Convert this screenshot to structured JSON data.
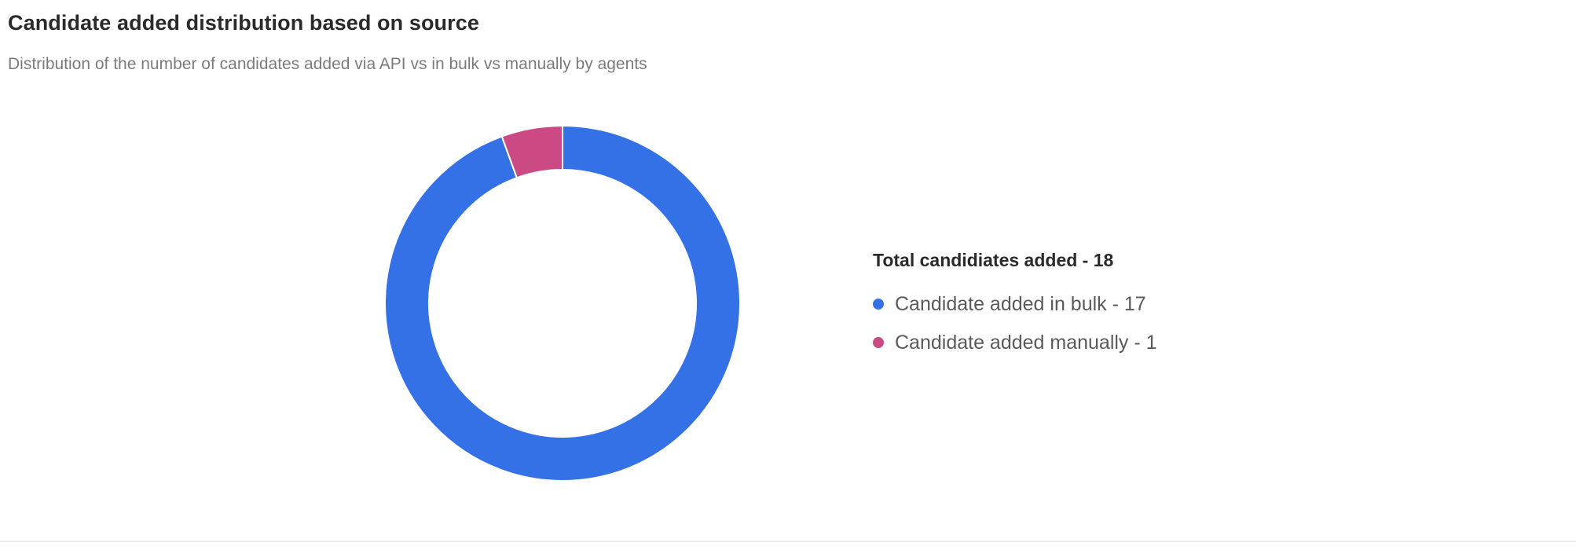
{
  "header": {
    "title": "Candidate added distribution based on source",
    "subtitle": "Distribution of the number of candidates added via API vs in bulk vs manually by agents"
  },
  "legend": {
    "total_label": "Total candidiates added - 18",
    "items": [
      {
        "label": "Candidate added in bulk - 17",
        "color": "#3471E6"
      },
      {
        "label": "Candidate added manually - 1",
        "color": "#CB4A83"
      }
    ]
  },
  "chart_data": {
    "type": "pie",
    "title": "Candidate added distribution based on source",
    "subtitle": "Distribution of the number of candidates added via API vs in bulk vs manually by agents",
    "donut": true,
    "legend_position": "right",
    "total": 18,
    "series": [
      {
        "name": "Candidate added in bulk",
        "value": 17,
        "color": "#3471E6"
      },
      {
        "name": "Candidate added manually",
        "value": 1,
        "color": "#CB4A83"
      }
    ]
  }
}
